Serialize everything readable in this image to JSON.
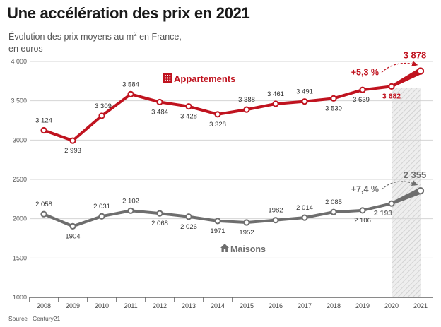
{
  "header": {
    "title": "Une accélération des prix en 2021",
    "subtitle_line1": "Évolution des prix moyens au m",
    "subtitle_sup": "2",
    "subtitle_line1_end": " en France,",
    "subtitle_line2": "en euros"
  },
  "source": "Source : Century21",
  "colors": {
    "appartements": "#c0131f",
    "maisons": "#6e6e6e",
    "grid": "#d4d4d4",
    "highlight": "#e6e6e6"
  },
  "chart_data": {
    "type": "line",
    "x": [
      "2008",
      "2009",
      "2010",
      "2011",
      "2012",
      "2013",
      "2014",
      "2015",
      "2016",
      "2017",
      "2018",
      "2019",
      "2020",
      "2021"
    ],
    "ylim": [
      1000,
      4000
    ],
    "yticks": [
      1000,
      1500,
      2000,
      2500,
      3000,
      3500,
      4000
    ],
    "ytick_labels": [
      "1000",
      "1500",
      "2000",
      "2500",
      "3000",
      "3 500",
      "4 000"
    ],
    "highlight_range": [
      "2020",
      "2021"
    ],
    "series": [
      {
        "name": "Appartements",
        "icon": "building-icon",
        "values": [
          3124,
          2993,
          3309,
          3584,
          3484,
          3428,
          3328,
          3388,
          3461,
          3491,
          3530,
          3639,
          3682,
          3878
        ],
        "labels": [
          "3 124",
          "2 993",
          "3 309",
          "3 584",
          "3 484",
          "3 428",
          "3 328",
          "3 388",
          "3 461",
          "3 491",
          "3 530",
          "3 639",
          "3 682",
          "3 878"
        ],
        "change_label": "+5,3 %"
      },
      {
        "name": "Maisons",
        "icon": "house-icon",
        "values": [
          2058,
          1904,
          2031,
          2102,
          2068,
          2026,
          1971,
          1952,
          1982,
          2014,
          2085,
          2106,
          2193,
          2355
        ],
        "labels": [
          "2 058",
          "1904",
          "2 031",
          "2 102",
          "2 068",
          "2 026",
          "1971",
          "1952",
          "1982",
          "2 014",
          "2 085",
          "2 106",
          "2 193",
          "2 355"
        ],
        "change_label": "+7,4 %"
      }
    ]
  }
}
